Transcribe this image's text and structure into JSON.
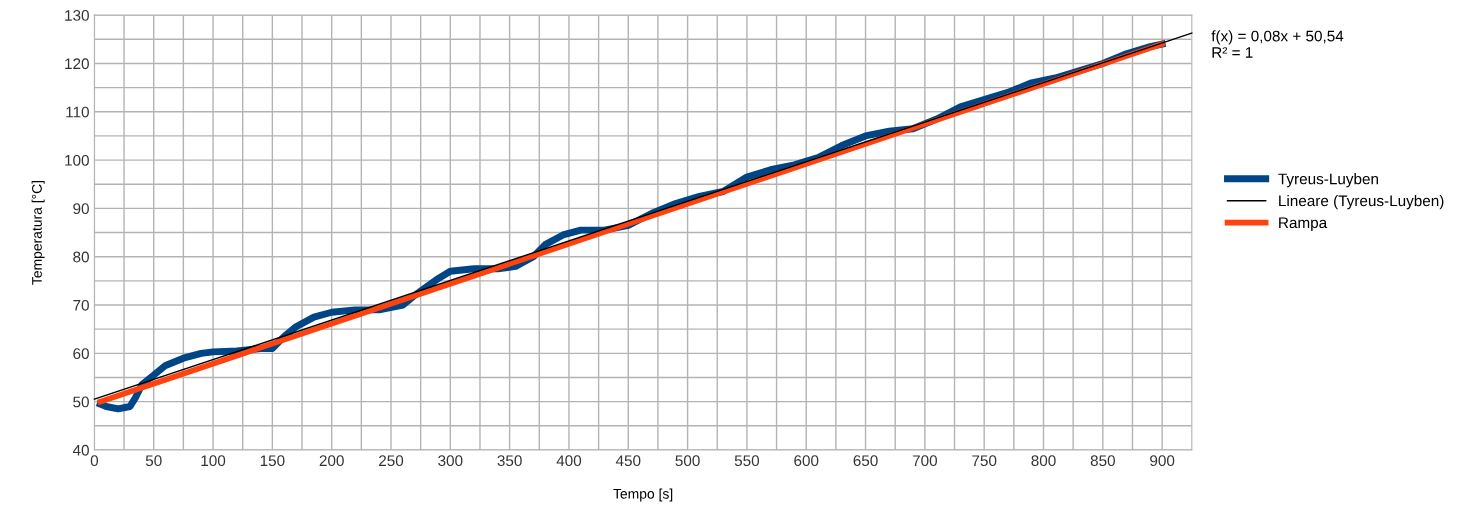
{
  "chart_data": {
    "type": "line",
    "xlabel": "Tempo [s]",
    "ylabel": "Temperatura [°C]",
    "xlim": [
      0,
      925
    ],
    "ylim": [
      40,
      130
    ],
    "xticks": [
      0,
      {
        "value": 25,
        "label": null
      },
      50,
      {
        "value": 75,
        "label": null
      },
      100,
      {
        "value": 125,
        "label": null
      },
      150,
      {
        "value": 175,
        "label": null
      },
      200,
      {
        "value": 225,
        "label": null
      },
      250,
      {
        "value": 275,
        "label": null
      },
      300,
      {
        "value": 325,
        "label": null
      },
      350,
      {
        "value": 375,
        "label": null
      },
      400,
      {
        "value": 425,
        "label": null
      },
      450,
      {
        "value": 475,
        "label": null
      },
      500,
      {
        "value": 525,
        "label": null
      },
      550,
      {
        "value": 575,
        "label": null
      },
      600,
      {
        "value": 625,
        "label": null
      },
      650,
      {
        "value": 675,
        "label": null
      },
      700,
      {
        "value": 725,
        "label": null
      },
      750,
      {
        "value": 775,
        "label": null
      },
      800,
      {
        "value": 825,
        "label": null
      },
      850,
      {
        "value": 875,
        "label": null
      },
      900
    ],
    "yticks": [
      40,
      {
        "value": 45,
        "label": null
      },
      50,
      {
        "value": 55,
        "label": null
      },
      60,
      {
        "value": 65,
        "label": null
      },
      70,
      {
        "value": 75,
        "label": null
      },
      80,
      {
        "value": 85,
        "label": null
      },
      90,
      {
        "value": 95,
        "label": null
      },
      100,
      {
        "value": 105,
        "label": null
      },
      110,
      {
        "value": 115,
        "label": null
      },
      120,
      {
        "value": 125,
        "label": null
      },
      130
    ],
    "grid": true,
    "legend": "right",
    "line_style": "solid",
    "marker": "none",
    "series": [
      {
        "name": "Tyreus-Luyben",
        "color": "#004586",
        "x": [
          5,
          10,
          20,
          30,
          35,
          40,
          50,
          60,
          75,
          90,
          100,
          120,
          140,
          150,
          160,
          170,
          185,
          200,
          220,
          240,
          260,
          270,
          290,
          300,
          320,
          340,
          355,
          370,
          380,
          395,
          410,
          430,
          450,
          470,
          490,
          510,
          530,
          550,
          570,
          590,
          610,
          630,
          650,
          670,
          690,
          710,
          730,
          750,
          770,
          790,
          810,
          830,
          850,
          870,
          890,
          900
        ],
        "values": [
          49.5,
          49,
          48.5,
          49,
          51,
          53.5,
          55.5,
          57.5,
          59,
          60,
          60.3,
          60.5,
          61,
          61,
          63.5,
          65.5,
          67.5,
          68.5,
          69,
          69,
          70,
          72,
          75.5,
          77,
          77.5,
          77.5,
          78,
          80,
          82.5,
          84.5,
          85.5,
          85.5,
          86.5,
          89,
          91,
          92.5,
          93.5,
          96.5,
          98,
          99,
          100.5,
          103,
          105,
          106,
          106.5,
          108.5,
          111,
          112.5,
          114,
          116,
          117,
          118.5,
          120,
          122,
          123.5,
          124
        ]
      },
      {
        "name": "Lineare (Tyreus-Luyben)",
        "color": "#000000",
        "x": [
          0,
          925
        ],
        "values": [
          50.5,
          126.3
        ]
      },
      {
        "name": "Rampa",
        "color": "#ff420e",
        "x": [
          5,
          900
        ],
        "values": [
          50,
          124
        ]
      }
    ],
    "annotations": [
      {
        "text": "f(x) = 0,08x + 50,54\nR² = 1",
        "x": 925,
        "y": 126.3
      }
    ]
  }
}
